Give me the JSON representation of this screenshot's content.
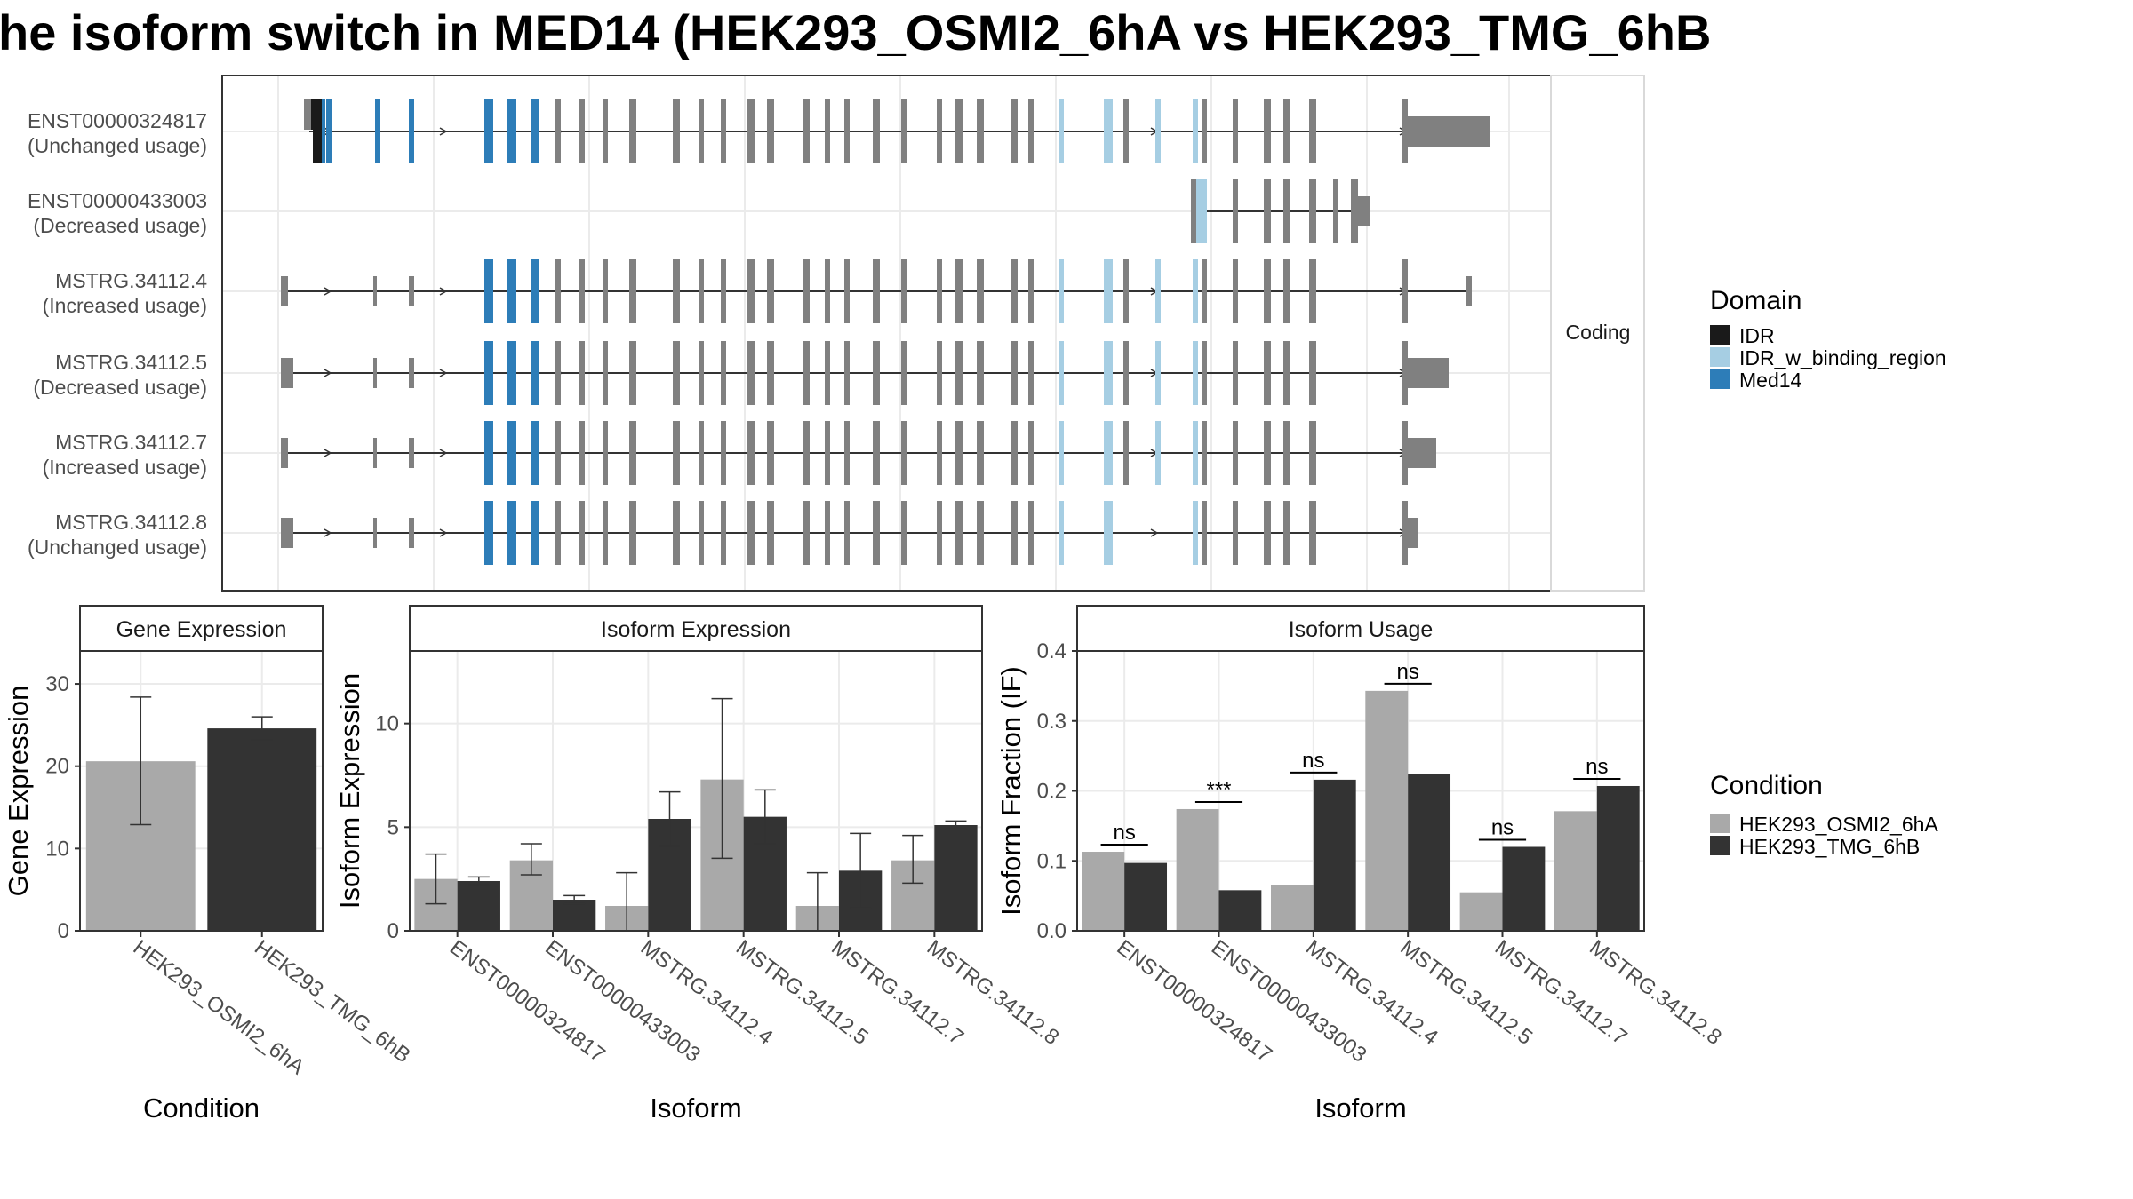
{
  "title": "he isoform switch in MED14 (HEK293_OSMI2_6hA vs HEK293_TMG_6hB",
  "colors": {
    "exon": "#808080",
    "IDR": "#1a1a1a",
    "IDR_w_binding_region": "#a6cee3",
    "Med14": "#2d7db8",
    "cond_a": "#a9a9a9",
    "cond_b": "#333333"
  },
  "structure": {
    "strip_label": "Coding",
    "transcripts": [
      {
        "id": "ENST00000324817",
        "usage": "(Unchanged usage)"
      },
      {
        "id": "ENST00000433003",
        "usage": "(Decreased usage)"
      },
      {
        "id": "MSTRG.34112.4",
        "usage": "(Increased usage)"
      },
      {
        "id": "MSTRG.34112.5",
        "usage": "(Decreased usage)"
      },
      {
        "id": "MSTRG.34112.7",
        "usage": "(Increased usage)"
      },
      {
        "id": "MSTRG.34112.8",
        "usage": "(Unchanged usage)"
      }
    ]
  },
  "legend_domain": {
    "title": "Domain",
    "items": [
      {
        "label": "IDR",
        "color": "#1a1a1a"
      },
      {
        "label": "IDR_w_binding_region",
        "color": "#a6cee3"
      },
      {
        "label": "Med14",
        "color": "#2d7db8"
      }
    ]
  },
  "legend_condition": {
    "title": "Condition",
    "items": [
      {
        "label": "HEK293_OSMI2_6hA",
        "color": "#a9a9a9"
      },
      {
        "label": "HEK293_TMG_6hB",
        "color": "#333333"
      }
    ]
  },
  "chart_data": [
    {
      "type": "bar",
      "title": "Gene Expression",
      "xlabel": "Condition",
      "ylabel": "Gene Expression",
      "ylim": [
        0,
        34
      ],
      "yticks": [
        0,
        10,
        20,
        30
      ],
      "categories": [
        "HEK293_OSMI2_6hA",
        "HEK293_TMG_6hB"
      ],
      "values": [
        20.6,
        24.6
      ],
      "error_low": [
        12.9,
        23.2
      ],
      "error_high": [
        28.4,
        26.0
      ]
    },
    {
      "type": "bar",
      "title": "Isoform Expression",
      "xlabel": "Isoform",
      "ylabel": "Isoform Expression",
      "ylim": [
        0,
        13.5
      ],
      "yticks": [
        0,
        5,
        10
      ],
      "categories": [
        "ENST00000324817",
        "ENST00000433003",
        "MSTRG.34112.4",
        "MSTRG.34112.5",
        "MSTRG.34112.7",
        "MSTRG.34112.8"
      ],
      "series": [
        {
          "name": "HEK293_OSMI2_6hA",
          "values": [
            2.5,
            3.4,
            1.2,
            7.3,
            1.2,
            3.4
          ],
          "error_low": [
            1.3,
            2.7,
            0.0,
            3.5,
            0.0,
            2.3
          ],
          "error_high": [
            3.7,
            4.2,
            2.8,
            11.2,
            2.8,
            4.6
          ]
        },
        {
          "name": "HEK293_TMG_6hB",
          "values": [
            2.4,
            1.5,
            5.4,
            5.5,
            2.9,
            5.1
          ],
          "error_low": [
            2.2,
            1.3,
            4.1,
            4.2,
            1.1,
            4.9
          ],
          "error_high": [
            2.6,
            1.7,
            6.7,
            6.8,
            4.7,
            5.3
          ]
        }
      ]
    },
    {
      "type": "bar",
      "title": "Isoform Usage",
      "xlabel": "Isoform",
      "ylabel": "Isoform Fraction (IF)",
      "ylim": [
        0,
        0.4
      ],
      "yticks": [
        0.0,
        0.1,
        0.2,
        0.3,
        0.4
      ],
      "categories": [
        "ENST00000324817",
        "ENST00000433003",
        "MSTRG.34112.4",
        "MSTRG.34112.5",
        "MSTRG.34112.7",
        "MSTRG.34112.8"
      ],
      "series": [
        {
          "name": "HEK293_OSMI2_6hA",
          "values": [
            0.113,
            0.174,
            0.065,
            0.343,
            0.055,
            0.171
          ]
        },
        {
          "name": "HEK293_TMG_6hB",
          "values": [
            0.097,
            0.058,
            0.216,
            0.224,
            0.12,
            0.207
          ]
        }
      ],
      "significance": [
        "ns",
        "***",
        "ns",
        "ns",
        "ns",
        "ns"
      ]
    }
  ]
}
